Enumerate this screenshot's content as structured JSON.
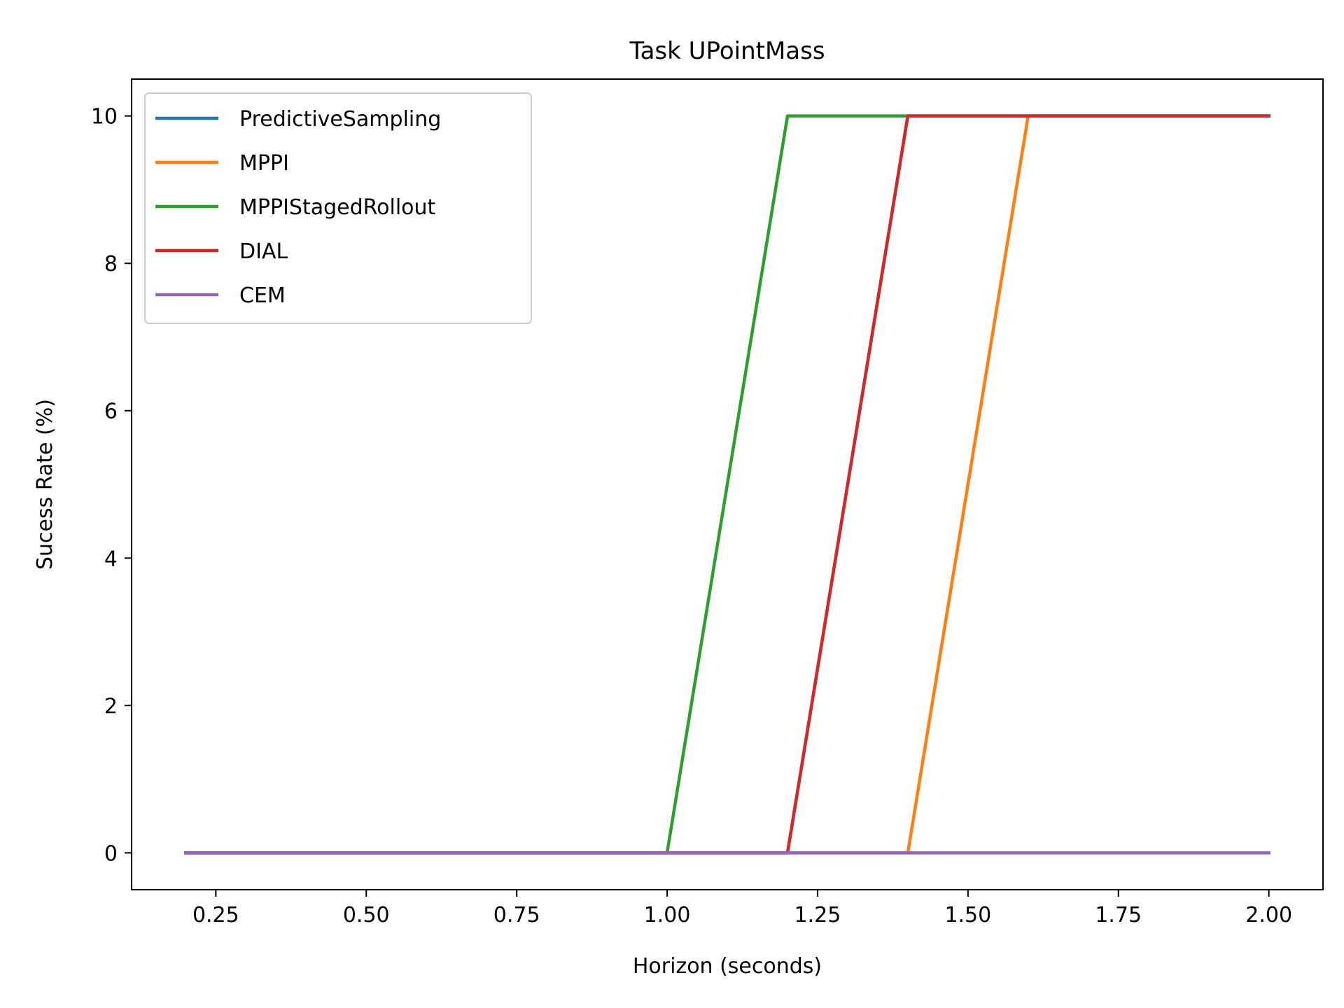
{
  "chart_data": {
    "type": "line",
    "title": "Task UPointMass",
    "xlabel": "Horizon (seconds)",
    "ylabel": "Sucess Rate (%)",
    "xlim": [
      0.11,
      2.09
    ],
    "ylim": [
      -0.5,
      10.5
    ],
    "xticks": [
      0.25,
      0.5,
      0.75,
      1.0,
      1.25,
      1.5,
      1.75,
      2.0
    ],
    "xtick_labels": [
      "0.25",
      "0.50",
      "0.75",
      "1.00",
      "1.25",
      "1.50",
      "1.75",
      "2.00"
    ],
    "yticks": [
      0,
      2,
      4,
      6,
      8,
      10
    ],
    "ytick_labels": [
      "0",
      "2",
      "4",
      "6",
      "8",
      "10"
    ],
    "grid": false,
    "legend_position": "top-left",
    "x": [
      0.2,
      0.4,
      0.6,
      0.8,
      1.0,
      1.2,
      1.4,
      1.6,
      1.8,
      2.0
    ],
    "series": [
      {
        "name": "PredictiveSampling",
        "color": "#1f77b4",
        "values": [
          0,
          0,
          0,
          0,
          0,
          0,
          10,
          10,
          10,
          10
        ]
      },
      {
        "name": "MPPI",
        "color": "#ff7f0e",
        "values": [
          0,
          0,
          0,
          0,
          0,
          0,
          0,
          10,
          10,
          10
        ]
      },
      {
        "name": "MPPIStagedRollout",
        "color": "#2ca02c",
        "values": [
          0,
          0,
          0,
          0,
          0,
          10,
          10,
          10,
          10,
          10
        ]
      },
      {
        "name": "DIAL",
        "color": "#d62728",
        "values": [
          0,
          0,
          0,
          0,
          0,
          0,
          10,
          10,
          10,
          10
        ]
      },
      {
        "name": "CEM",
        "color": "#9467bd",
        "values": [
          0,
          0,
          0,
          0,
          0,
          0,
          0,
          0,
          0,
          0
        ]
      }
    ]
  }
}
